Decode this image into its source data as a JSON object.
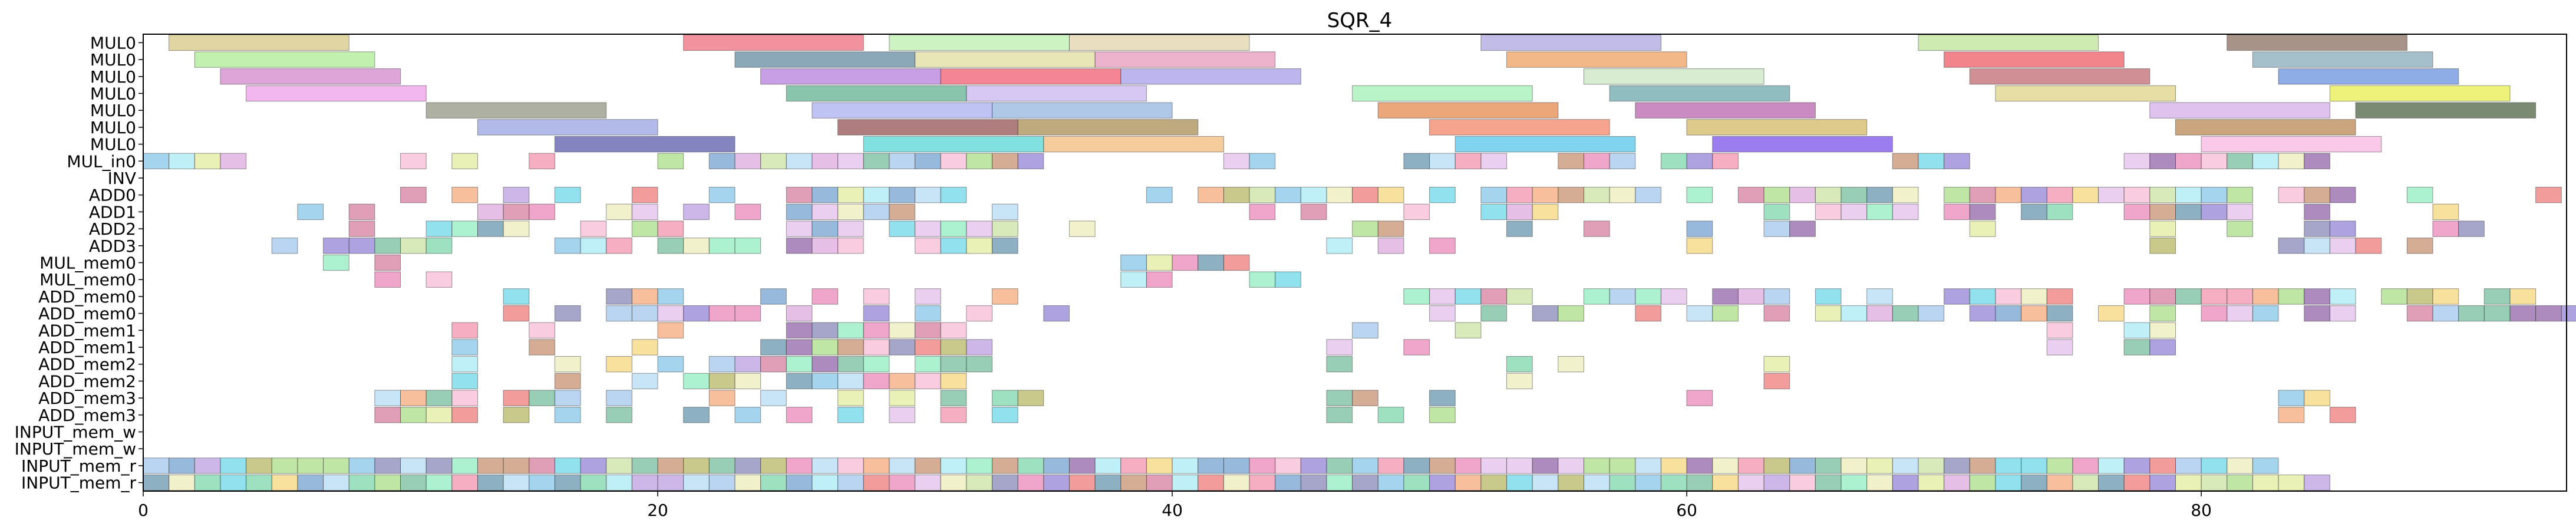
{
  "chart_data": {
    "type": "gantt",
    "title": "SQR_4",
    "xlabel": "",
    "ylabel": "",
    "xlim": [
      0,
      94.2
    ],
    "xticks": [
      0,
      20,
      40,
      60,
      80
    ],
    "grid": false,
    "legend": "none",
    "rows": [
      "MUL0",
      "MUL0",
      "MUL0",
      "MUL0",
      "MUL0",
      "MUL0",
      "MUL0",
      "MUL_in0",
      "INV",
      "ADD0",
      "ADD1",
      "ADD2",
      "ADD3",
      "MUL_mem0",
      "MUL_mem0",
      "ADD_mem0",
      "ADD_mem0",
      "ADD_mem1",
      "ADD_mem1",
      "ADD_mem2",
      "ADD_mem2",
      "ADD_mem3",
      "ADD_mem3",
      "INPUT_mem_w",
      "INPUT_mem_w",
      "INPUT_mem_r",
      "INPUT_mem_r"
    ],
    "long_tasks": [
      {
        "row": 0,
        "start": 1,
        "dur": 7,
        "color": "#c9b458"
      },
      {
        "row": 0,
        "start": 21,
        "dur": 7,
        "color": "#e8384f"
      },
      {
        "row": 0,
        "start": 29,
        "dur": 7,
        "color": "#a4e98f"
      },
      {
        "row": 0,
        "start": 36,
        "dur": 7,
        "color": "#d7c48c"
      },
      {
        "row": 0,
        "start": 52,
        "dur": 7,
        "color": "#8f85d6"
      },
      {
        "row": 0,
        "start": 69,
        "dur": 7,
        "color": "#a6dd72"
      },
      {
        "row": 0,
        "start": 81,
        "dur": 7,
        "color": "#5e3a25"
      },
      {
        "row": 1,
        "start": 2,
        "dur": 7,
        "color": "#8fe36b"
      },
      {
        "row": 1,
        "start": 23,
        "dur": 7,
        "color": "#2c6180"
      },
      {
        "row": 1,
        "start": 30,
        "dur": 7,
        "color": "#d6d27c"
      },
      {
        "row": 1,
        "start": 37,
        "dur": 7,
        "color": "#e074a3"
      },
      {
        "row": 1,
        "start": 53,
        "dur": 7,
        "color": "#ea7e27"
      },
      {
        "row": 1,
        "start": 70,
        "dur": 7,
        "color": "#e8212b"
      },
      {
        "row": 1,
        "start": 82,
        "dur": 7,
        "color": "#5d8da1"
      },
      {
        "row": 2,
        "start": 3,
        "dur": 7,
        "color": "#c25db8"
      },
      {
        "row": 2,
        "start": 24,
        "dur": 7,
        "color": "#9b4fd0"
      },
      {
        "row": 2,
        "start": 31,
        "dur": 7,
        "color": "#e9213d"
      },
      {
        "row": 2,
        "start": 38,
        "dur": 7,
        "color": "#8678e0"
      },
      {
        "row": 2,
        "start": 56,
        "dur": 7,
        "color": "#b6dcab"
      },
      {
        "row": 2,
        "start": 71,
        "dur": 7,
        "color": "#a8333e"
      },
      {
        "row": 2,
        "start": 83,
        "dur": 7,
        "color": "#3167cf"
      },
      {
        "row": 3,
        "start": 4,
        "dur": 7,
        "color": "#e87be0"
      },
      {
        "row": 3,
        "start": 25,
        "dur": 7,
        "color": "#269668"
      },
      {
        "row": 3,
        "start": 32,
        "dur": 7,
        "color": "#b59be8"
      },
      {
        "row": 3,
        "start": 47,
        "dur": 7,
        "color": "#7fe99b"
      },
      {
        "row": 3,
        "start": 57,
        "dur": 7,
        "color": "#35878c"
      },
      {
        "row": 3,
        "start": 72,
        "dur": 7,
        "color": "#d3c35b"
      },
      {
        "row": 3,
        "start": 85,
        "dur": 7,
        "color": "#e0e70e"
      },
      {
        "row": 4,
        "start": 11,
        "dur": 7,
        "color": "#6b7155"
      },
      {
        "row": 4,
        "start": 26,
        "dur": 7,
        "color": "#8b92e9"
      },
      {
        "row": 4,
        "start": 33,
        "dur": 7,
        "color": "#6e9bd6"
      },
      {
        "row": 4,
        "start": 48,
        "dur": 7,
        "color": "#db5c0d"
      },
      {
        "row": 4,
        "start": 58,
        "dur": 7,
        "color": "#9c2b90"
      },
      {
        "row": 4,
        "start": 78,
        "dur": 7,
        "color": "#c490e0"
      },
      {
        "row": 4,
        "start": 86,
        "dur": 7,
        "color": "#0f2a00"
      },
      {
        "row": 5,
        "start": 13,
        "dur": 7,
        "color": "#7381d8"
      },
      {
        "row": 5,
        "start": 27,
        "dur": 7,
        "color": "#6e1313"
      },
      {
        "row": 5,
        "start": 34,
        "dur": 7,
        "color": "#8a6518"
      },
      {
        "row": 5,
        "start": 50,
        "dur": 7,
        "color": "#ef5a32"
      },
      {
        "row": 5,
        "start": 60,
        "dur": 7,
        "color": "#c39e2c"
      },
      {
        "row": 5,
        "start": 79,
        "dur": 7,
        "color": "#a15b13"
      },
      {
        "row": 6,
        "start": 16,
        "dur": 7,
        "color": "#1e1f8c"
      },
      {
        "row": 6,
        "start": 28,
        "dur": 7,
        "color": "#1ac9c9"
      },
      {
        "row": 6,
        "start": 35,
        "dur": 7,
        "color": "#f0a24c"
      },
      {
        "row": 6,
        "start": 51,
        "dur": 7,
        "color": "#1ab0e3"
      },
      {
        "row": 6,
        "start": 61,
        "dur": 7,
        "color": "#4913e3"
      },
      {
        "row": 6,
        "start": 80,
        "dur": 7,
        "color": "#f59dd9"
      }
    ],
    "cell_width": 1
  }
}
